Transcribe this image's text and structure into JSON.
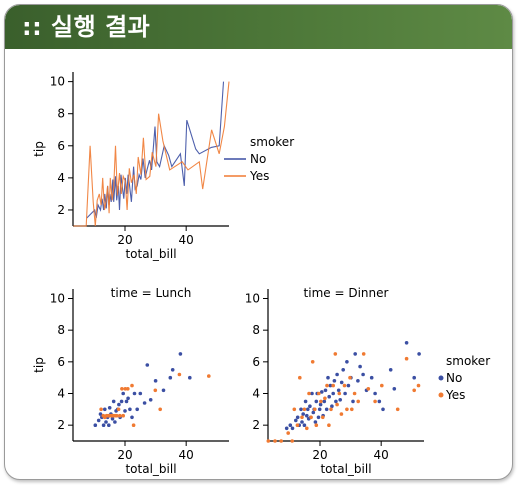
{
  "banner": {
    "title": ":: 실행 결과"
  },
  "colors": {
    "no": "#3b4fa3",
    "yes": "#f07a32",
    "banner": "#4a7236"
  },
  "chart_data": [
    {
      "type": "line",
      "xlabel": "total_bill",
      "ylabel": "tip",
      "xticks": [
        20,
        40
      ],
      "yticks": [
        2,
        4,
        6,
        8,
        10
      ],
      "xlim": [
        3,
        54
      ],
      "ylim": [
        1,
        10.6
      ],
      "legend": {
        "title": "smoker",
        "entries": [
          "No",
          "Yes"
        ],
        "placement": "right"
      },
      "series": [
        {
          "name": "No",
          "color": "#3b4fa3",
          "x": [
            7.5,
            10.1,
            10.6,
            11.2,
            12.0,
            12.5,
            13.0,
            13.4,
            13.9,
            14.3,
            14.8,
            15.1,
            15.5,
            16.0,
            16.3,
            16.9,
            17.3,
            17.8,
            18.2,
            18.7,
            19.1,
            19.6,
            20.1,
            20.6,
            21.0,
            21.5,
            22.1,
            22.8,
            23.3,
            24.0,
            24.6,
            25.2,
            25.9,
            26.6,
            27.2,
            28.0,
            28.7,
            29.8,
            30.4,
            31.3,
            32.8,
            34.3,
            35.3,
            38.1,
            39.4,
            40.2,
            43.1,
            44.3,
            48.2,
            50.8,
            52.2
          ],
          "y": [
            1.5,
            2.0,
            1.5,
            2.3,
            2.0,
            2.7,
            2.0,
            3.0,
            2.1,
            3.5,
            2.3,
            3.0,
            2.5,
            3.9,
            2.5,
            4.1,
            2.6,
            3.5,
            2.0,
            4.2,
            3.5,
            2.7,
            4.0,
            3.0,
            4.2,
            3.5,
            2.5,
            4.7,
            3.3,
            3.5,
            4.2,
            3.9,
            5.2,
            4.0,
            4.5,
            5.1,
            4.5,
            7.2,
            5.0,
            4.7,
            6.0,
            5.4,
            4.7,
            5.5,
            3.5,
            7.6,
            5.8,
            5.5,
            5.9,
            6.0,
            10.0
          ]
        },
        {
          "name": "Yes",
          "color": "#f07a32",
          "x": [
            3.1,
            5.3,
            7.3,
            8.6,
            9.6,
            10.3,
            10.9,
            11.6,
            12.2,
            12.7,
            13.3,
            13.8,
            14.3,
            14.8,
            15.2,
            15.8,
            16.3,
            16.9,
            17.5,
            18.2,
            18.8,
            19.4,
            20.1,
            20.7,
            21.4,
            22.1,
            22.9,
            23.7,
            24.3,
            25.2,
            26.0,
            26.9,
            28.1,
            28.9,
            30.1,
            31.0,
            32.4,
            34.6,
            38.7,
            40.6,
            44.3,
            45.4,
            48.3,
            50.8,
            52.5,
            54.0
          ],
          "y": [
            1.0,
            1.0,
            1.0,
            6.0,
            2.5,
            1.0,
            2.6,
            3.0,
            2.3,
            4.0,
            2.0,
            2.5,
            3.5,
            1.8,
            4.0,
            2.6,
            3.4,
            6.0,
            2.9,
            4.3,
            3.0,
            4.1,
            3.8,
            2.0,
            4.6,
            3.7,
            4.2,
            3.0,
            5.3,
            4.2,
            6.5,
            3.9,
            4.1,
            5.6,
            4.7,
            8.0,
            6.3,
            4.5,
            5.0,
            4.5,
            5.0,
            3.3,
            7.0,
            5.5,
            7.2,
            10.0
          ]
        }
      ]
    },
    {
      "type": "scatter",
      "title": "time = Lunch",
      "xlabel": "total_bill",
      "ylabel": "tip",
      "xticks": [
        20,
        40
      ],
      "yticks": [
        2,
        4,
        6,
        8,
        10
      ],
      "xlim": [
        3,
        54
      ],
      "ylim": [
        1,
        10.6
      ],
      "series": [
        {
          "name": "No",
          "color": "#3b4fa3",
          "x": [
            10.3,
            11.4,
            12.0,
            12.4,
            13.0,
            13.4,
            13.8,
            14.3,
            14.7,
            15.0,
            15.4,
            15.9,
            16.3,
            16.7,
            17.1,
            17.6,
            18.0,
            18.4,
            18.9,
            19.4,
            20.0,
            20.5,
            21.0,
            21.6,
            22.3,
            23.1,
            24.0,
            25.0,
            26.4,
            27.3,
            28.4,
            30.0,
            32.6,
            34.8,
            35.6,
            38.1,
            41.2
          ],
          "y": [
            2.0,
            2.3,
            2.7,
            2.5,
            2.0,
            3.0,
            2.2,
            2.5,
            2.0,
            3.1,
            2.7,
            2.4,
            3.5,
            2.2,
            2.9,
            3.0,
            3.3,
            2.5,
            3.5,
            4.0,
            2.9,
            3.5,
            3.7,
            3.0,
            2.5,
            4.0,
            3.0,
            4.0,
            3.4,
            5.8,
            3.6,
            4.8,
            4.2,
            5.0,
            5.5,
            6.5,
            5.0
          ]
        },
        {
          "name": "Yes",
          "color": "#f07a32",
          "x": [
            12.2,
            12.9,
            13.4,
            14.0,
            14.5,
            15.0,
            15.6,
            16.2,
            16.8,
            17.3,
            17.9,
            18.3,
            19.0,
            19.4,
            20.1,
            20.9,
            22.3,
            22.8,
            29.9,
            31.5,
            37.8,
            47.4
          ],
          "y": [
            3.0,
            2.6,
            2.5,
            2.6,
            2.6,
            2.6,
            2.6,
            2.6,
            2.6,
            2.6,
            3.0,
            2.6,
            4.3,
            2.6,
            4.3,
            4.3,
            4.5,
            2.0,
            4.2,
            3.0,
            5.2,
            5.1
          ]
        }
      ]
    },
    {
      "type": "scatter",
      "title": "time = Dinner",
      "xlabel": "total_bill",
      "ylabel": "",
      "xticks": [
        20,
        40
      ],
      "yticks": [
        2,
        4,
        6,
        8,
        10
      ],
      "xlim": [
        3,
        54
      ],
      "ylim": [
        1,
        10.6
      ],
      "legend": {
        "title": "smoker",
        "entries": [
          "No",
          "Yes"
        ],
        "placement": "right"
      },
      "series": [
        {
          "name": "No",
          "color": "#3b4fa3",
          "x": [
            9.1,
            10.3,
            11.0,
            12.1,
            12.7,
            13.2,
            13.8,
            14.1,
            14.5,
            14.9,
            15.3,
            15.7,
            16.0,
            16.3,
            16.7,
            17.0,
            17.4,
            17.8,
            18.1,
            18.5,
            18.8,
            19.1,
            19.5,
            19.9,
            20.2,
            20.6,
            21.0,
            21.4,
            21.8,
            22.2,
            22.6,
            23.0,
            23.4,
            23.9,
            24.3,
            24.7,
            25.2,
            25.6,
            26.1,
            26.6,
            27.1,
            27.6,
            28.2,
            28.8,
            29.3,
            30.1,
            30.8,
            31.5,
            32.4,
            33.1,
            34.1,
            35.2,
            36.9,
            38.0,
            39.4,
            40.6,
            43.1,
            44.3,
            48.3,
            50.8,
            52.4
          ],
          "y": [
            1.8,
            2.0,
            1.8,
            2.3,
            2.5,
            2.0,
            3.0,
            2.2,
            2.7,
            2.0,
            3.5,
            2.6,
            3.0,
            2.4,
            3.2,
            2.5,
            4.0,
            2.8,
            3.0,
            2.2,
            3.5,
            4.0,
            2.5,
            3.0,
            3.3,
            4.1,
            2.6,
            3.5,
            4.2,
            3.0,
            5.0,
            3.8,
            4.5,
            3.2,
            4.0,
            4.8,
            3.5,
            5.2,
            4.2,
            3.6,
            4.7,
            5.5,
            4.0,
            6.0,
            4.5,
            5.0,
            3.5,
            6.5,
            4.8,
            5.7,
            5.2,
            4.2,
            5.0,
            4.0,
            3.5,
            3.0,
            5.5,
            4.3,
            7.2,
            5.0,
            6.5
          ]
        },
        {
          "name": "Yes",
          "color": "#f07a32",
          "x": [
            3.1,
            5.3,
            7.3,
            9.6,
            10.9,
            11.6,
            12.6,
            13.4,
            14.1,
            14.9,
            15.7,
            16.4,
            17.1,
            17.6,
            18.3,
            18.8,
            19.6,
            20.3,
            20.9,
            21.6,
            22.3,
            22.9,
            23.6,
            24.3,
            25.0,
            25.6,
            26.3,
            27.0,
            28.0,
            28.8,
            29.8,
            30.4,
            31.3,
            32.5,
            34.3,
            35.8,
            38.0,
            40.2,
            45.4,
            48.3,
            50.8,
            52.2
          ],
          "y": [
            1.0,
            1.0,
            1.0,
            1.5,
            1.0,
            3.0,
            2.0,
            5.0,
            2.5,
            3.0,
            1.8,
            4.0,
            2.5,
            6.0,
            3.0,
            2.0,
            4.0,
            3.5,
            2.5,
            3.7,
            4.5,
            2.0,
            3.0,
            4.5,
            6.5,
            3.3,
            4.0,
            2.7,
            4.5,
            3.0,
            5.0,
            3.0,
            4.0,
            3.5,
            6.5,
            4.3,
            3.5,
            4.5,
            3.0,
            6.2,
            4.2,
            4.5
          ]
        }
      ]
    }
  ]
}
